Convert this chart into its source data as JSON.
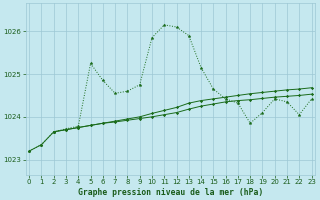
{
  "title": "Graphe pression niveau de la mer (hPa)",
  "bg_color": "#c5e8ef",
  "grid_color": "#9dc8d4",
  "line_color": "#1a6b1a",
  "label_color": "#1a5c1a",
  "ylabel_values": [
    1023,
    1024,
    1025,
    1026
  ],
  "xlim": [
    -0.3,
    23.3
  ],
  "ylim": [
    1022.65,
    1026.65
  ],
  "series1_x": [
    0,
    1,
    2,
    3,
    4,
    5,
    6,
    7,
    8,
    9,
    10,
    11,
    12,
    13,
    14,
    15,
    16,
    17,
    18,
    19,
    20,
    21,
    22,
    23
  ],
  "series1_y": [
    1023.2,
    1023.35,
    1023.65,
    1023.72,
    1023.78,
    1025.25,
    1024.85,
    1024.55,
    1024.6,
    1024.75,
    1025.85,
    1026.15,
    1026.1,
    1025.9,
    1025.15,
    1024.65,
    1024.42,
    1024.32,
    1023.85,
    1024.1,
    1024.42,
    1024.35,
    1024.05,
    1024.42
  ],
  "series2_x": [
    0,
    1,
    2,
    3,
    4,
    5,
    6,
    7,
    8,
    9,
    10,
    11,
    12,
    13,
    14,
    15,
    16,
    17,
    18,
    19,
    20,
    21,
    22,
    23
  ],
  "series2_y": [
    1023.2,
    1023.35,
    1023.65,
    1023.7,
    1023.75,
    1023.8,
    1023.85,
    1023.88,
    1023.92,
    1023.96,
    1024.0,
    1024.05,
    1024.1,
    1024.18,
    1024.25,
    1024.3,
    1024.35,
    1024.38,
    1024.4,
    1024.43,
    1024.46,
    1024.48,
    1024.5,
    1024.53
  ],
  "series3_x": [
    2,
    3,
    4,
    5,
    6,
    7,
    8,
    9,
    10,
    11,
    12,
    13,
    14,
    15,
    16,
    17,
    18,
    19,
    20,
    21,
    22,
    23
  ],
  "series3_y": [
    1023.65,
    1023.7,
    1023.75,
    1023.8,
    1023.85,
    1023.9,
    1023.95,
    1024.0,
    1024.08,
    1024.15,
    1024.22,
    1024.32,
    1024.38,
    1024.42,
    1024.46,
    1024.5,
    1024.54,
    1024.57,
    1024.6,
    1024.63,
    1024.65,
    1024.68
  ]
}
